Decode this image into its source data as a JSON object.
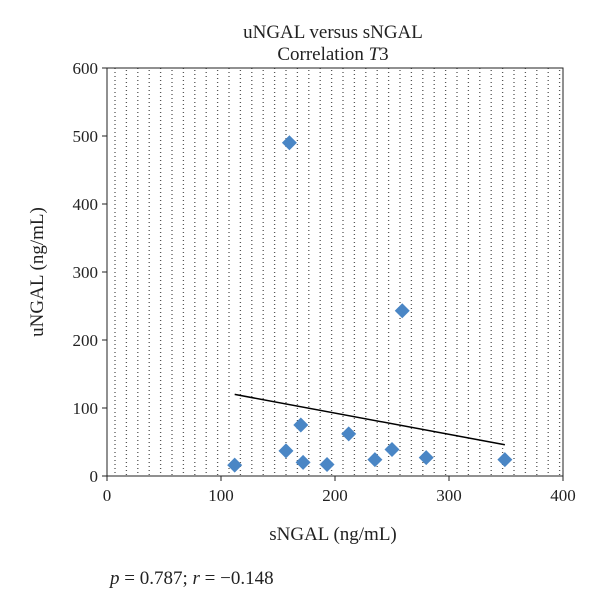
{
  "chart_data": {
    "type": "scatter",
    "title": "uNGAL versus sNGAL",
    "subtitle_prefix": "Correlation ",
    "subtitle_italic": "T",
    "subtitle_suffix": "3",
    "xlabel": "sNGAL (ng/mL)",
    "ylabel": "uNGAL (ng/mL)",
    "xlim": [
      0,
      400
    ],
    "ylim": [
      0,
      600
    ],
    "xticks": [
      0,
      100,
      200,
      300,
      400
    ],
    "yticks": [
      0,
      100,
      200,
      300,
      400,
      500,
      600
    ],
    "grid": true,
    "series": [
      {
        "marker_color": "#4a86c5",
        "x": [
          112,
          157,
          160,
          170,
          172,
          193,
          212,
          235,
          250,
          259,
          280,
          349
        ],
        "y": [
          16,
          37,
          490,
          75,
          20,
          17,
          62,
          24,
          39,
          243,
          27,
          24
        ]
      }
    ],
    "trendline": {
      "x": [
        112,
        349
      ],
      "y": [
        120,
        46
      ]
    }
  },
  "stats": {
    "p_symbol": "p",
    "p_text": " = 0.787; ",
    "r_symbol": "r",
    "r_text": " = −0.148"
  }
}
